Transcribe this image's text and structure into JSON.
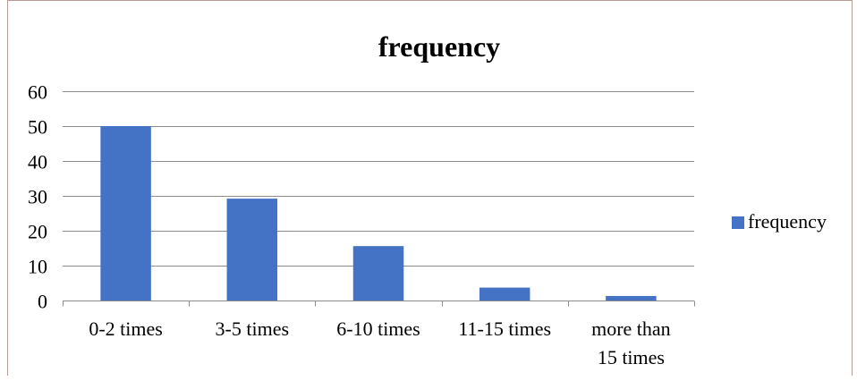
{
  "chart_data": {
    "type": "bar",
    "title": "frequency",
    "xlabel": "",
    "ylabel": "",
    "categories": [
      "0-2 times",
      "3-5 times",
      "6-10 times",
      "11-15 times",
      "more than 15 times"
    ],
    "category_lines": [
      [
        "0-2 times"
      ],
      [
        "3-5 times"
      ],
      [
        "6-10 times"
      ],
      [
        "11-15 times"
      ],
      [
        "more than",
        "15 times"
      ]
    ],
    "series": [
      {
        "name": "frequency",
        "values": [
          50,
          29.2,
          15.6,
          3.7,
          1.3
        ],
        "color": "#4472c4"
      }
    ],
    "ylim": [
      0,
      60
    ],
    "yticks": [
      "0",
      "10",
      "20",
      "30",
      "40",
      "50",
      "60"
    ],
    "grid": true,
    "legend_position": "right"
  }
}
